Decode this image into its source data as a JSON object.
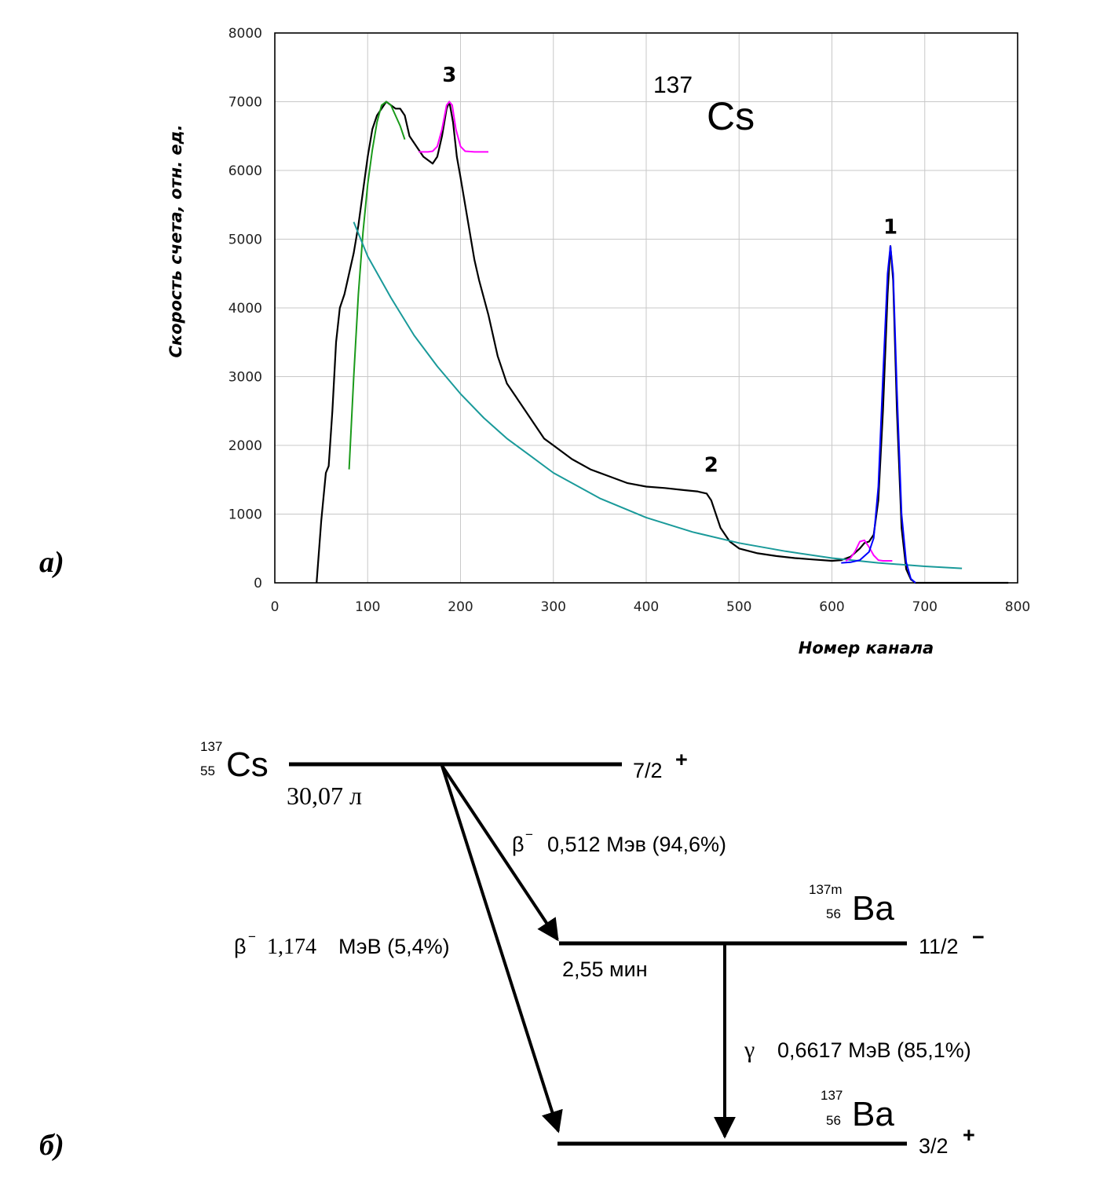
{
  "chart_data": {
    "type": "line",
    "xlabel": "Номер канала",
    "ylabel": "Скорость счета, отн. ед.",
    "xlim": [
      0,
      800
    ],
    "ylim": [
      0,
      8000
    ],
    "xticks": [
      "0",
      "100",
      "200",
      "300",
      "400",
      "500",
      "600",
      "700",
      "800"
    ],
    "yticks": [
      "0",
      "1000",
      "2000",
      "3000",
      "4000",
      "5000",
      "6000",
      "7000",
      "8000"
    ],
    "grid": true,
    "isotope_mass": "137",
    "isotope_symbol": "Cs",
    "peak_labels": [
      {
        "text": "1",
        "x": 663,
        "y": 5080
      },
      {
        "text": "2",
        "x": 470,
        "y": 1620
      },
      {
        "text": "3",
        "x": 188,
        "y": 7290
      }
    ],
    "series": [
      {
        "color": "#000000",
        "x": [
          45,
          50,
          55,
          58,
          62,
          66,
          70,
          75,
          80,
          85,
          90,
          95,
          100,
          105,
          110,
          115,
          120,
          125,
          130,
          135,
          140,
          145,
          150,
          155,
          160,
          165,
          170,
          175,
          180,
          185,
          188,
          192,
          196,
          200,
          205,
          210,
          215,
          220,
          230,
          240,
          250,
          260,
          270,
          280,
          290,
          300,
          320,
          340,
          360,
          380,
          400,
          420,
          440,
          455,
          465,
          470,
          475,
          480,
          490,
          500,
          520,
          540,
          560,
          580,
          600,
          610,
          620,
          630,
          635,
          640,
          645,
          650,
          655,
          660,
          663,
          666,
          670,
          675,
          680,
          685,
          690,
          700,
          720,
          740,
          760,
          780,
          790
        ],
        "y": [
          0,
          900,
          1600,
          1700,
          2500,
          3500,
          4000,
          4200,
          4500,
          4800,
          5200,
          5700,
          6200,
          6600,
          6800,
          6900,
          7000,
          6950,
          6900,
          6900,
          6800,
          6500,
          6400,
          6300,
          6200,
          6150,
          6100,
          6200,
          6500,
          6900,
          7000,
          6700,
          6200,
          5900,
          5500,
          5100,
          4700,
          4400,
          3900,
          3300,
          2900,
          2700,
          2500,
          2300,
          2100,
          2000,
          1800,
          1650,
          1550,
          1450,
          1400,
          1380,
          1350,
          1330,
          1300,
          1200,
          1000,
          800,
          600,
          500,
          430,
          390,
          360,
          340,
          320,
          330,
          380,
          500,
          580,
          600,
          700,
          1200,
          2500,
          4200,
          4900,
          4400,
          2500,
          800,
          200,
          50,
          0,
          0,
          0,
          0,
          0,
          0,
          0
        ]
      },
      {
        "color": "#1a9a1a",
        "x": [
          80,
          85,
          90,
          95,
          100,
          105,
          110,
          115,
          120,
          125,
          130,
          135,
          140
        ],
        "y": [
          1650,
          3000,
          4200,
          5100,
          5800,
          6300,
          6700,
          6950,
          7000,
          6950,
          6800,
          6650,
          6450
        ]
      },
      {
        "color": "#ff00ff",
        "x": [
          155,
          165,
          170,
          175,
          180,
          185,
          188,
          191,
          195,
          200,
          205,
          215,
          230
        ],
        "y": [
          6270,
          6270,
          6280,
          6350,
          6600,
          6950,
          7000,
          6950,
          6600,
          6350,
          6280,
          6270,
          6270
        ]
      },
      {
        "color": "#1a9a9a",
        "x": [
          85,
          100,
          125,
          150,
          175,
          200,
          225,
          250,
          275,
          300,
          350,
          400,
          450,
          500,
          550,
          600,
          650,
          700,
          740
        ],
        "y": [
          5250,
          4750,
          4150,
          3600,
          3150,
          2750,
          2400,
          2100,
          1850,
          1600,
          1230,
          950,
          740,
          580,
          460,
          360,
          290,
          240,
          210
        ]
      },
      {
        "color": "#ff00ff",
        "x": [
          615,
          620,
          625,
          630,
          635,
          640,
          645,
          650,
          655,
          665
        ],
        "y": [
          320,
          360,
          460,
          600,
          620,
          520,
          400,
          330,
          320,
          320
        ]
      },
      {
        "color": "#0000ff",
        "x": [
          610,
          620,
          630,
          640,
          645,
          650,
          655,
          660,
          663,
          666,
          670,
          675,
          680,
          685,
          690
        ],
        "y": [
          290,
          300,
          330,
          450,
          650,
          1400,
          3000,
          4500,
          4900,
          4500,
          2800,
          1000,
          300,
          60,
          0
        ]
      }
    ]
  },
  "figure": {
    "panel_a": "а)",
    "panel_b": "б)",
    "scheme": {
      "cs_mass": "137",
      "cs_z": "55",
      "cs_symbol": "Cs",
      "cs_halflife": "30,07 л",
      "cs_spin": "7/2",
      "cs_parity": "+",
      "beta1_symbol": "β",
      "beta1_sign": "−",
      "beta1_text": "0,512 Мэв (94,6%)",
      "ba137m_mass": "137m",
      "ba137m_z": "56",
      "ba137m_symbol": "Ba",
      "ba137m_spin": "11/2",
      "ba137m_parity": "−",
      "ba137m_halflife": "2,55 мин",
      "beta2_symbol": "β",
      "beta2_sign": "−",
      "beta2_energy": "1,174",
      "beta2_rest": "МэВ (5,4%)",
      "gamma_symbol": "γ",
      "gamma_text": "0,6617 МэВ (85,1%)",
      "ba137_mass": "137",
      "ba137_z": "56",
      "ba137_symbol": "Ba",
      "ba137_spin": "3/2",
      "ba137_parity": "+"
    }
  }
}
